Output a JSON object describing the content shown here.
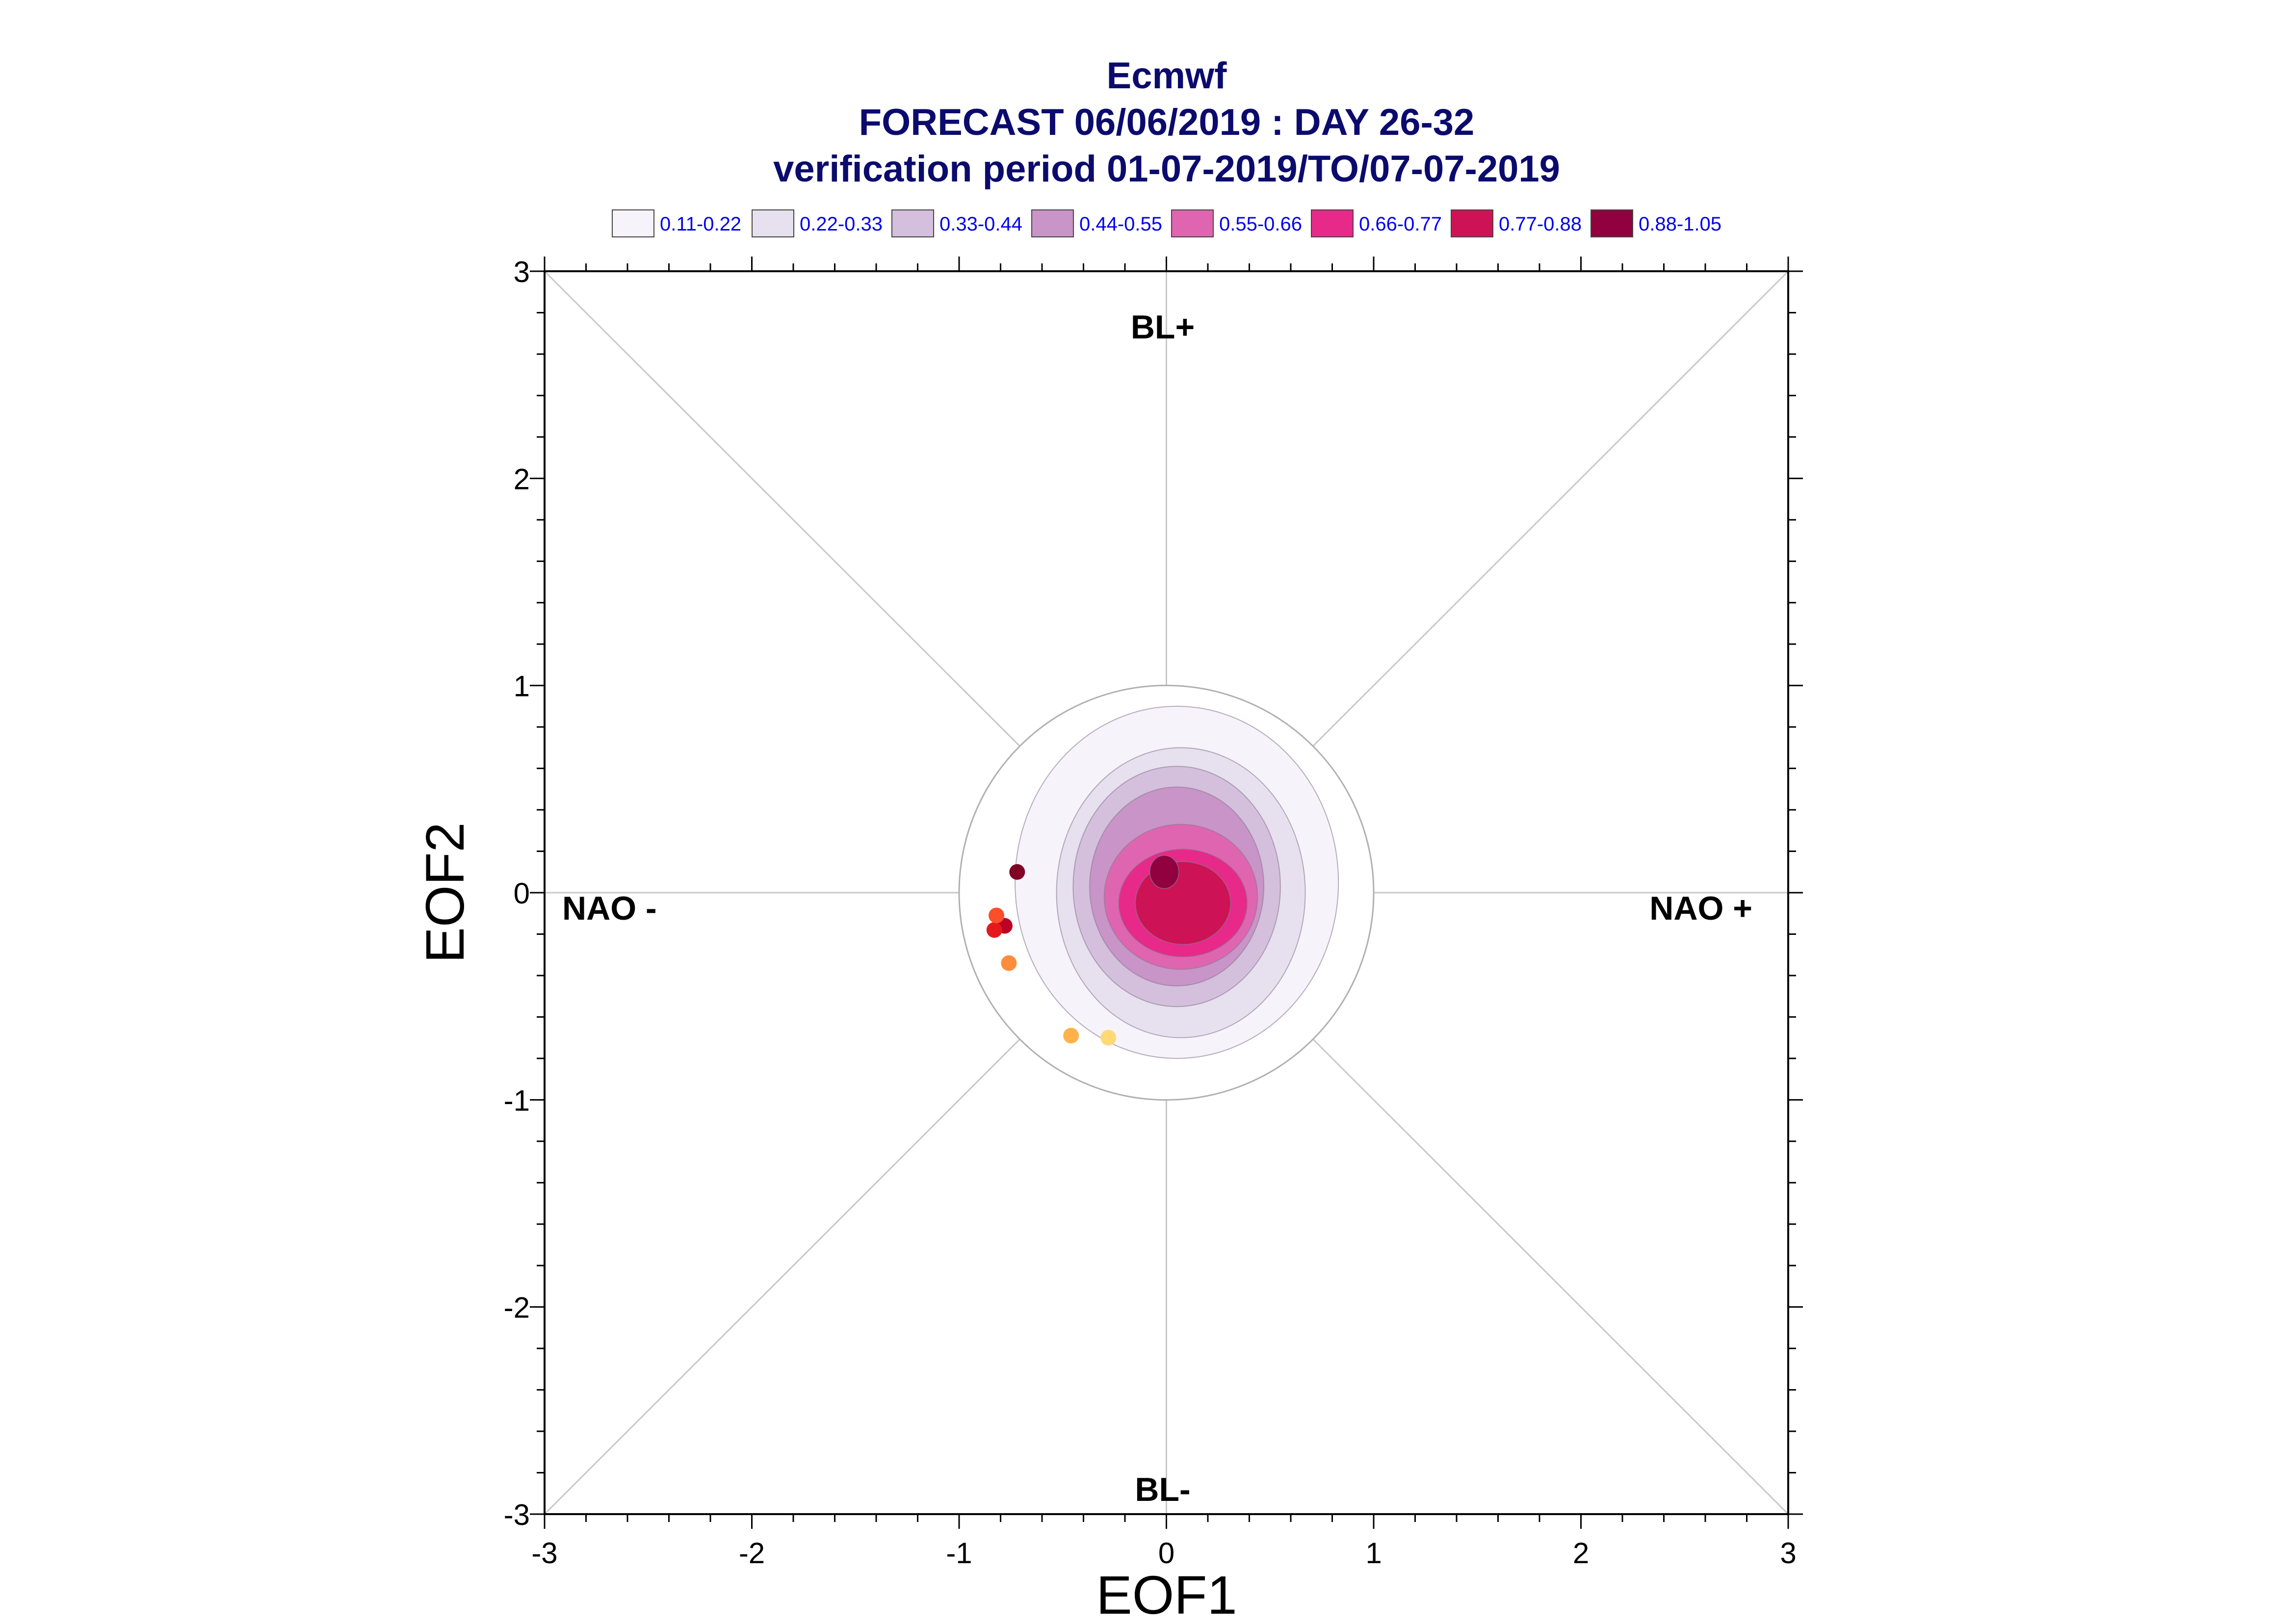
{
  "chart_data": {
    "type": "scatter",
    "title": "Ecmwf",
    "subtitle": [
      "FORECAST 06/06/2019 : DAY 26-32",
      "verification period 01-07-2019/TO/07-07-2019"
    ],
    "xlabel": "EOF1",
    "ylabel": "EOF2",
    "xlim": [
      -3,
      3
    ],
    "ylim": [
      -3,
      3
    ],
    "xticks": [
      "-3",
      "-2",
      "-1",
      "0",
      "1",
      "2",
      "3"
    ],
    "yticks": [
      "-3",
      "-2",
      "-1",
      "0",
      "1",
      "2",
      "3"
    ],
    "grid": "zero lines and diagonals",
    "reference_circle_radius": 1,
    "regime_labels": {
      "top": "BL+",
      "bottom": "BL-",
      "left": "NAO -",
      "right": "NAO +"
    },
    "legend": {
      "placement": "top",
      "entries": [
        {
          "label": "0.11-0.22",
          "color": "#f6f3fa"
        },
        {
          "label": "0.22-0.33",
          "color": "#e7e0ef"
        },
        {
          "label": "0.33-0.44",
          "color": "#d4bfdc"
        },
        {
          "label": "0.44-0.55",
          "color": "#c994c7"
        },
        {
          "label": "0.55-0.66",
          "color": "#df65b0"
        },
        {
          "label": "0.66-0.77",
          "color": "#e7298a"
        },
        {
          "label": "0.77-0.88",
          "color": "#ce1256"
        },
        {
          "label": "0.88-1.05",
          "color": "#91003f"
        }
      ]
    },
    "density_contours": [
      {
        "level": "0.11-0.22",
        "center": [
          0.05,
          0.05
        ],
        "rx": 0.78,
        "ry": 0.85
      },
      {
        "level": "0.22-0.33",
        "center": [
          0.07,
          0.0
        ],
        "rx": 0.6,
        "ry": 0.7
      },
      {
        "level": "0.33-0.44",
        "center": [
          0.05,
          0.03
        ],
        "rx": 0.5,
        "ry": 0.58
      },
      {
        "level": "0.44-0.55",
        "center": [
          0.05,
          0.03
        ],
        "rx": 0.42,
        "ry": 0.48
      },
      {
        "level": "0.55-0.66",
        "center": [
          0.07,
          -0.02
        ],
        "rx": 0.37,
        "ry": 0.35
      },
      {
        "level": "0.66-0.77",
        "center": [
          0.08,
          -0.05
        ],
        "rx": 0.31,
        "ry": 0.26
      },
      {
        "level": "0.77-0.88",
        "center": [
          0.08,
          -0.05
        ],
        "rx": 0.23,
        "ry": 0.2
      },
      {
        "level": "0.88-1.05",
        "center": [
          -0.01,
          0.1
        ],
        "rx": 0.07,
        "ry": 0.08
      }
    ],
    "points": [
      {
        "x": -0.72,
        "y": 0.1,
        "color": "#800026"
      },
      {
        "x": -0.78,
        "y": -0.16,
        "color": "#bd0026"
      },
      {
        "x": -0.83,
        "y": -0.18,
        "color": "#e31a1c"
      },
      {
        "x": -0.82,
        "y": -0.11,
        "color": "#fc4e2a"
      },
      {
        "x": -0.76,
        "y": -0.34,
        "color": "#fd8d3c"
      },
      {
        "x": -0.46,
        "y": -0.69,
        "color": "#feb24c"
      },
      {
        "x": -0.28,
        "y": -0.7,
        "color": "#fed976"
      }
    ]
  }
}
